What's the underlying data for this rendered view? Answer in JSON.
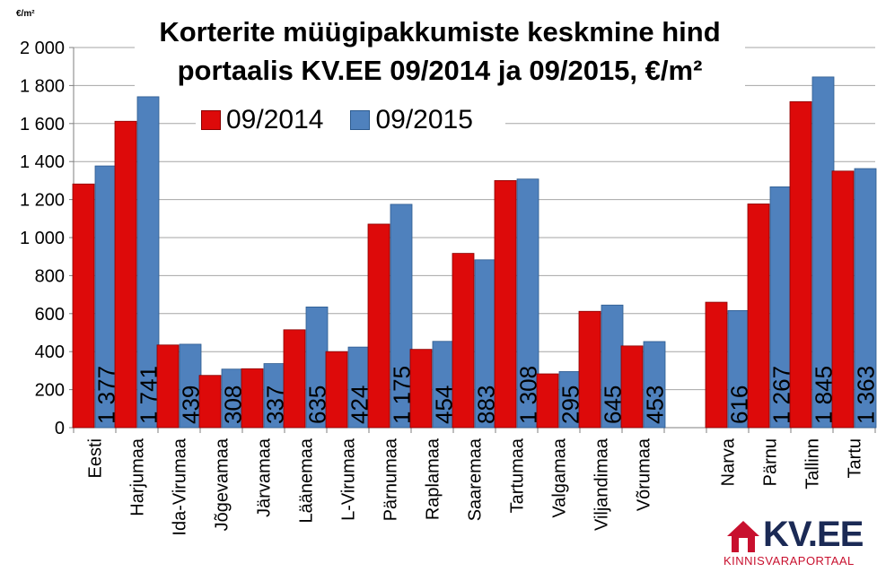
{
  "chart_data": {
    "type": "bar",
    "title_line1": "Korterite müügipakkumiste keskmine hind",
    "title_line2": "portaalis KV.EE 09/2014 ja 09/2015, €/m²",
    "unit_label": "€/m²",
    "ylim": [
      0,
      2000
    ],
    "y_ticks": [
      "0",
      "200",
      "400",
      "600",
      "800",
      "1 000",
      "1 200",
      "1 400",
      "1 600",
      "1 800",
      "2 000"
    ],
    "legend_position": "top-left",
    "grid": true,
    "categories": [
      "Eesti",
      "Harjumaa",
      "Ida-Virumaa",
      "Jõgevamaa",
      "Järvamaa",
      "Läänemaa",
      "L-Virumaa",
      "Pärnumaa",
      "Raplamaa",
      "Saaremaa",
      "Tartumaa",
      "Valgamaa",
      "Viljandimaa",
      "Võrumaa",
      "Narva",
      "Pärnu",
      "Tallinn",
      "Tartu"
    ],
    "series": [
      {
        "name": "09/2014",
        "color": "#dd0a0a",
        "values": [
          1282,
          1612,
          435,
          275,
          310,
          515,
          400,
          1071,
          412,
          917,
          1300,
          283,
          612,
          430,
          660,
          1177,
          1715,
          1350
        ]
      },
      {
        "name": "09/2015",
        "color": "#4f81bd",
        "values": [
          1377,
          1741,
          439,
          308,
          337,
          635,
          424,
          1175,
          454,
          883,
          1308,
          295,
          645,
          453,
          616,
          1267,
          1845,
          1363
        ],
        "labels": [
          "1 377",
          "1 741",
          "439",
          "308",
          "337",
          "635",
          "424",
          "1 175",
          "454",
          "883",
          "1 308",
          "295",
          "645",
          "453",
          "616",
          "1 267",
          "1 845",
          "1 363"
        ]
      }
    ]
  },
  "logo": {
    "brand": "KV.EE",
    "subtitle": "KINNISVARAPORTAAL"
  }
}
